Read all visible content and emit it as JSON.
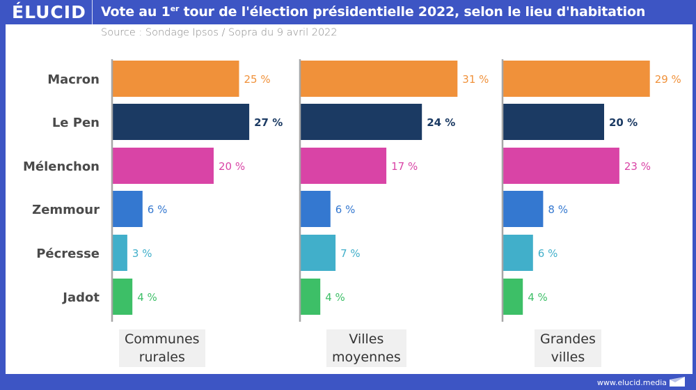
{
  "header": {
    "logo": "ÉLUCID",
    "title_prefix": "Vote au 1",
    "title_sup": "er",
    "title_suffix": " tour de l'élection présidentielle 2022, selon le lieu d'habitation",
    "subtitle": "Source : Sondage Ipsos / Sopra du 9 avril 2022"
  },
  "footer": {
    "url": "www.elucid.media"
  },
  "colors": {
    "frame": "#3d55c4",
    "axis": "#a6a6a6",
    "label_box": "#f0f0f0"
  },
  "chart_data": {
    "type": "bar",
    "orientation": "horizontal",
    "title": "Vote au 1er tour de l'élection présidentielle 2022, selon le lieu d'habitation",
    "subtitle": "Source : Sondage Ipsos / Sopra du 9 avril 2022",
    "categories": [
      "Macron",
      "Le Pen",
      "Mélenchon",
      "Zemmour",
      "Pécresse",
      "Jadot"
    ],
    "category_colors": [
      "#f0913a",
      "#1b3a63",
      "#d944a6",
      "#3478d0",
      "#41afca",
      "#3dbf67"
    ],
    "unit": "%",
    "value_suffix": " %",
    "panels": [
      {
        "name": "Communes rurales",
        "label_lines": [
          "Communes",
          "rurales"
        ],
        "values": [
          25,
          27,
          20,
          6,
          3,
          4
        ]
      },
      {
        "name": "Villes moyennes",
        "label_lines": [
          "Villes",
          "moyennes"
        ],
        "values": [
          31,
          24,
          17,
          6,
          7,
          4
        ]
      },
      {
        "name": "Grandes villes",
        "label_lines": [
          "Grandes",
          "villes"
        ],
        "values": [
          29,
          20,
          23,
          8,
          6,
          4
        ]
      }
    ],
    "xlim": [
      0,
      35
    ],
    "grid": false,
    "legend": "none"
  }
}
